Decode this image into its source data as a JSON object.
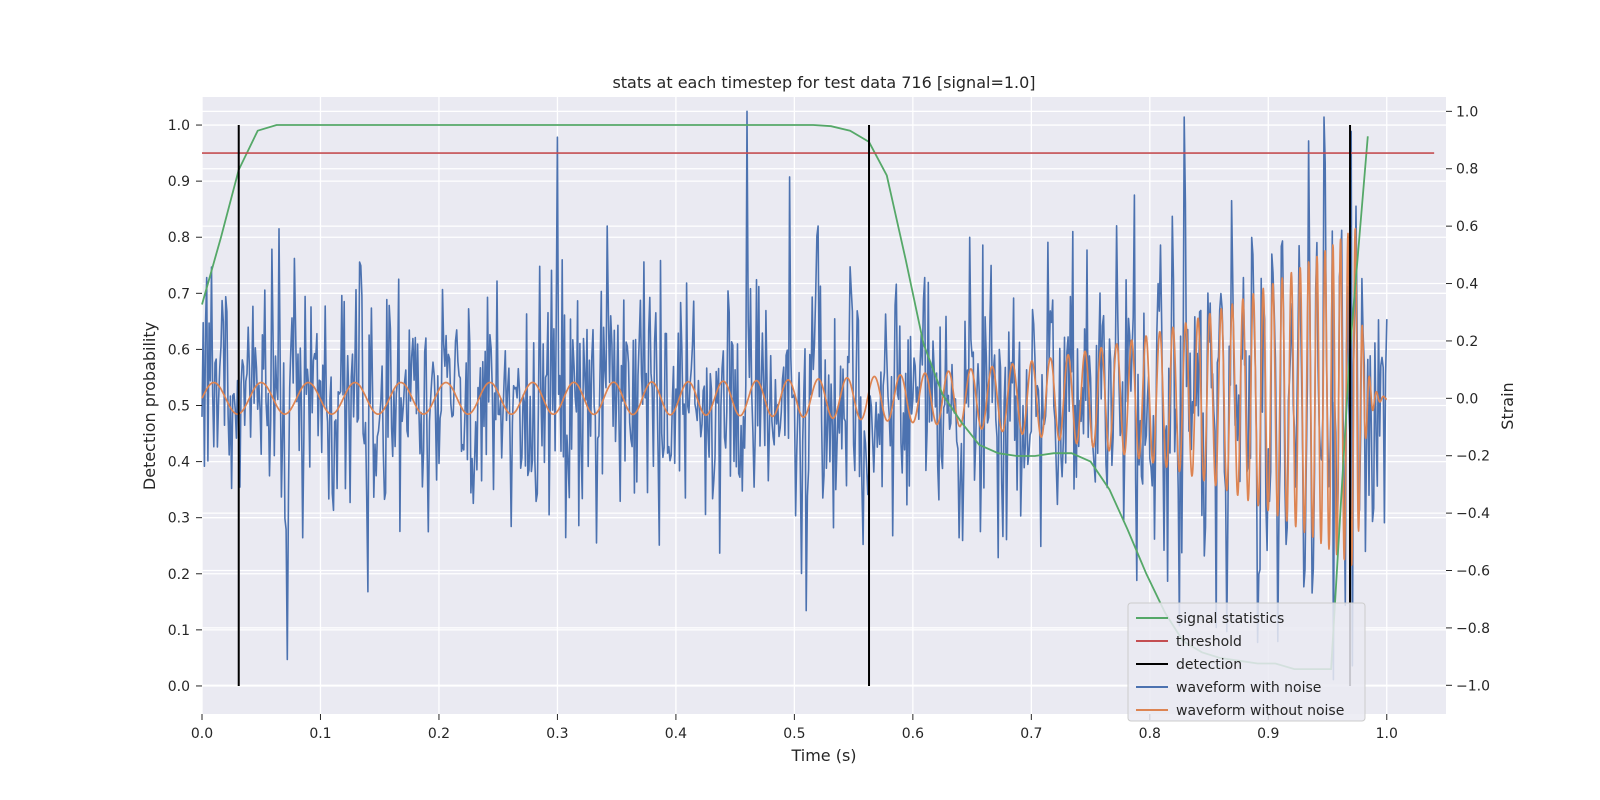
{
  "chart_data": {
    "type": "line",
    "title": "stats at each timestep for test data 716 [signal=1.0]",
    "xlabel": "Time (s)",
    "ylabel": "Detection probability",
    "y2label": "Strain",
    "xlim": [
      0.0,
      1.05
    ],
    "ylim": [
      -0.05,
      1.05
    ],
    "y2lim": [
      -1.1,
      1.05
    ],
    "xticks": [
      "0.0",
      "0.1",
      "0.2",
      "0.3",
      "0.4",
      "0.5",
      "0.6",
      "0.7",
      "0.8",
      "0.9",
      "1.0"
    ],
    "yticks": [
      "0.0",
      "0.1",
      "0.2",
      "0.3",
      "0.4",
      "0.5",
      "0.6",
      "0.7",
      "0.8",
      "0.9",
      "1.0"
    ],
    "y2ticks": [
      "−1.0",
      "−0.8",
      "−0.6",
      "−0.4",
      "−0.2",
      "0.0",
      "0.2",
      "0.4",
      "0.6",
      "0.8",
      "1.0"
    ],
    "grid": true,
    "legend_position": "bottom-right",
    "series": [
      {
        "name": "signal statistics",
        "color": "#55a868",
        "axis": "left",
        "x": [
          0.0,
          0.016,
          0.031,
          0.047,
          0.063,
          0.078,
          0.094,
          0.2,
          0.3,
          0.4,
          0.5,
          0.516,
          0.531,
          0.547,
          0.563,
          0.578,
          0.594,
          0.609,
          0.625,
          0.641,
          0.656,
          0.672,
          0.688,
          0.703,
          0.719,
          0.734,
          0.75,
          0.766,
          0.781,
          0.797,
          0.813,
          0.828,
          0.844,
          0.859,
          0.875,
          0.891,
          0.906,
          0.922,
          0.938,
          0.953,
          0.969,
          0.984
        ],
        "y": [
          0.68,
          0.8,
          0.92,
          0.99,
          1.0,
          1.0,
          1.0,
          1.0,
          1.0,
          1.0,
          1.0,
          1.0,
          0.998,
          0.99,
          0.97,
          0.91,
          0.76,
          0.61,
          0.52,
          0.47,
          0.43,
          0.415,
          0.41,
          0.41,
          0.415,
          0.415,
          0.4,
          0.35,
          0.28,
          0.2,
          0.13,
          0.08,
          0.06,
          0.05,
          0.045,
          0.04,
          0.04,
          0.03,
          0.03,
          0.03,
          0.6,
          0.98
        ]
      },
      {
        "name": "threshold",
        "color": "#c44e52",
        "axis": "left",
        "x": [
          0.0,
          1.04
        ],
        "y": [
          0.95,
          0.95
        ]
      },
      {
        "name": "detection",
        "color": "#000000",
        "axis": "left",
        "events": [
          0.031,
          0.563,
          0.969
        ],
        "y_range": [
          0.0,
          1.0
        ]
      },
      {
        "name": "waveform with noise",
        "color": "#4c72b0",
        "axis": "right",
        "generated": "noisy",
        "x_range": [
          0.0,
          1.0
        ],
        "approx_amplitude": 0.3,
        "points": 1000,
        "notable_peaks": [
          {
            "x": 0.46,
            "y": 1.0
          },
          {
            "x": 0.3,
            "y": 0.91
          },
          {
            "x": 0.072,
            "y": -0.91
          },
          {
            "x": 0.97,
            "y": 0.93
          },
          {
            "x": 0.955,
            "y": -0.98
          }
        ]
      },
      {
        "name": "waveform without noise",
        "color": "#dd8452",
        "axis": "right",
        "generated": "chirp",
        "x_range": [
          0.0,
          1.0
        ],
        "start_amplitude": 0.055,
        "peak_amplitude": 0.6,
        "start_period_s": 0.04,
        "end_period_s": 0.006,
        "merger_time": 0.975,
        "ringdown_end": 1.0
      }
    ]
  }
}
